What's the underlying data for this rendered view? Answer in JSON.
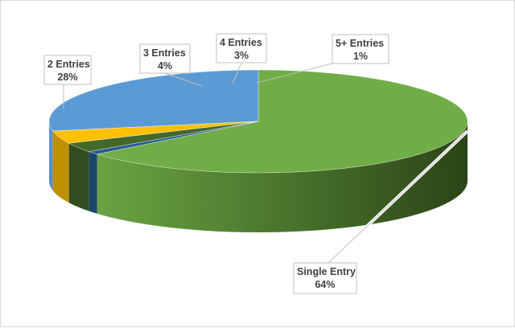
{
  "chart_data": {
    "type": "pie",
    "style": "3d",
    "title": "",
    "slices": [
      {
        "label": "Single Entry",
        "value": 64,
        "display": "64%",
        "color": "#70ad47"
      },
      {
        "label": "2 Entries",
        "value": 28,
        "display": "28%",
        "color": "#5b9bd5"
      },
      {
        "label": "3 Entries",
        "value": 4,
        "display": "4%",
        "color": "#ffc000"
      },
      {
        "label": "4 Entries",
        "value": 3,
        "display": "3%",
        "color": "#43682b"
      },
      {
        "label": "5+ Entries",
        "value": 1,
        "display": "1%",
        "color": "#255e91"
      }
    ],
    "legend": "none",
    "data_labels": "callouts with leader lines"
  }
}
